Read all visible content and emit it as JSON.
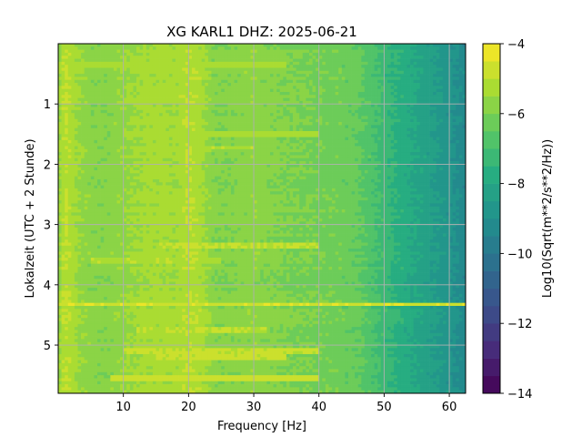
{
  "chart_data": {
    "type": "heatmap",
    "title": "XG KARL1  DHZ: 2025-06-21",
    "xlabel": "Frequency [Hz]",
    "ylabel": "Lokalzeit (UTC + 2 Stunde)",
    "xlim": [
      0,
      62.5
    ],
    "ylim": [
      5.8,
      0
    ],
    "xticks": [
      10,
      20,
      30,
      40,
      50,
      60
    ],
    "yticks": [
      1,
      2,
      3,
      4,
      5
    ],
    "grid": true,
    "colormap": "viridis",
    "colorbar": {
      "label": "Log10(Sqrt(m**2/s**2/Hz))",
      "range": [
        -14,
        -4
      ],
      "ticks": [
        -4,
        -6,
        -8,
        -10,
        -12,
        -14
      ],
      "levels": 20
    },
    "frequency_profile": {
      "frequency_hz": [
        0,
        1,
        3,
        6,
        8,
        10,
        13,
        16,
        18,
        20,
        22,
        24,
        26,
        30,
        33,
        36,
        40,
        43,
        46,
        48,
        50,
        52,
        54,
        56,
        58,
        60,
        62.5
      ],
      "log10_amplitude": [
        -5.7,
        -4.9,
        -5.5,
        -5.9,
        -5.8,
        -5.6,
        -5.4,
        -5.3,
        -5.4,
        -5.0,
        -5.3,
        -5.9,
        -5.9,
        -5.7,
        -5.9,
        -6.0,
        -6.1,
        -6.2,
        -6.4,
        -6.8,
        -7.2,
        -7.6,
        -7.9,
        -8.2,
        -8.5,
        -8.8,
        -9.3
      ]
    },
    "bright_bands": [
      {
        "time_h": 0.35,
        "freq_range": [
          0,
          35
        ],
        "log10_amplitude": -5.3
      },
      {
        "time_h": 1.5,
        "freq_range": [
          10,
          40
        ],
        "log10_amplitude": -5.2
      },
      {
        "time_h": 1.73,
        "freq_range": [
          12,
          30
        ],
        "log10_amplitude": -5.1
      },
      {
        "time_h": 3.35,
        "freq_range": [
          15,
          40
        ],
        "log10_amplitude": -5.0
      },
      {
        "time_h": 3.6,
        "freq_range": [
          5,
          25
        ],
        "log10_amplitude": -5.1
      },
      {
        "time_h": 4.33,
        "freq_range": [
          0,
          62.5
        ],
        "log10_amplitude": -4.6
      },
      {
        "time_h": 4.75,
        "freq_range": [
          12,
          32
        ],
        "log10_amplitude": -5.0
      },
      {
        "time_h": 5.1,
        "freq_range": [
          10,
          40
        ],
        "log10_amplitude": -4.9
      },
      {
        "time_h": 5.2,
        "freq_range": [
          15,
          35
        ],
        "log10_amplitude": -4.9
      },
      {
        "time_h": 5.55,
        "freq_range": [
          8,
          40
        ],
        "log10_amplitude": -4.8
      }
    ]
  }
}
